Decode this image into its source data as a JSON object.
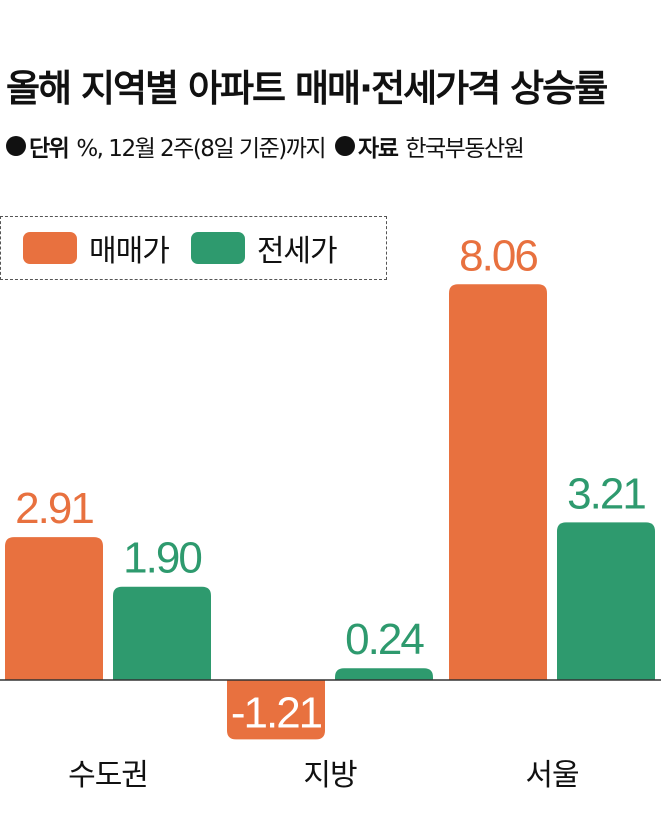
{
  "header": {
    "title": "올해 지역별 아파트 매매·전세가격 상승률",
    "unit_key": "단위",
    "unit_value": "%, 12월 2주(8일 기준)까지",
    "source_key": "자료",
    "source_value": "한국부동산원"
  },
  "chart_data": {
    "type": "bar",
    "categories": [
      "수도권",
      "지방",
      "서울"
    ],
    "series": [
      {
        "name": "매매가",
        "color": "#E8713F",
        "values": [
          2.91,
          -1.21,
          8.06
        ],
        "labels": [
          "2.91",
          "-1.21",
          "8.06"
        ]
      },
      {
        "name": "전세가",
        "color": "#2E9A6E",
        "values": [
          1.9,
          0.24,
          3.21
        ],
        "labels": [
          "1.90",
          "0.24",
          "3.21"
        ]
      }
    ],
    "ylim": [
      -1.5,
      8.5
    ],
    "grid": false,
    "legend": "top-left"
  }
}
